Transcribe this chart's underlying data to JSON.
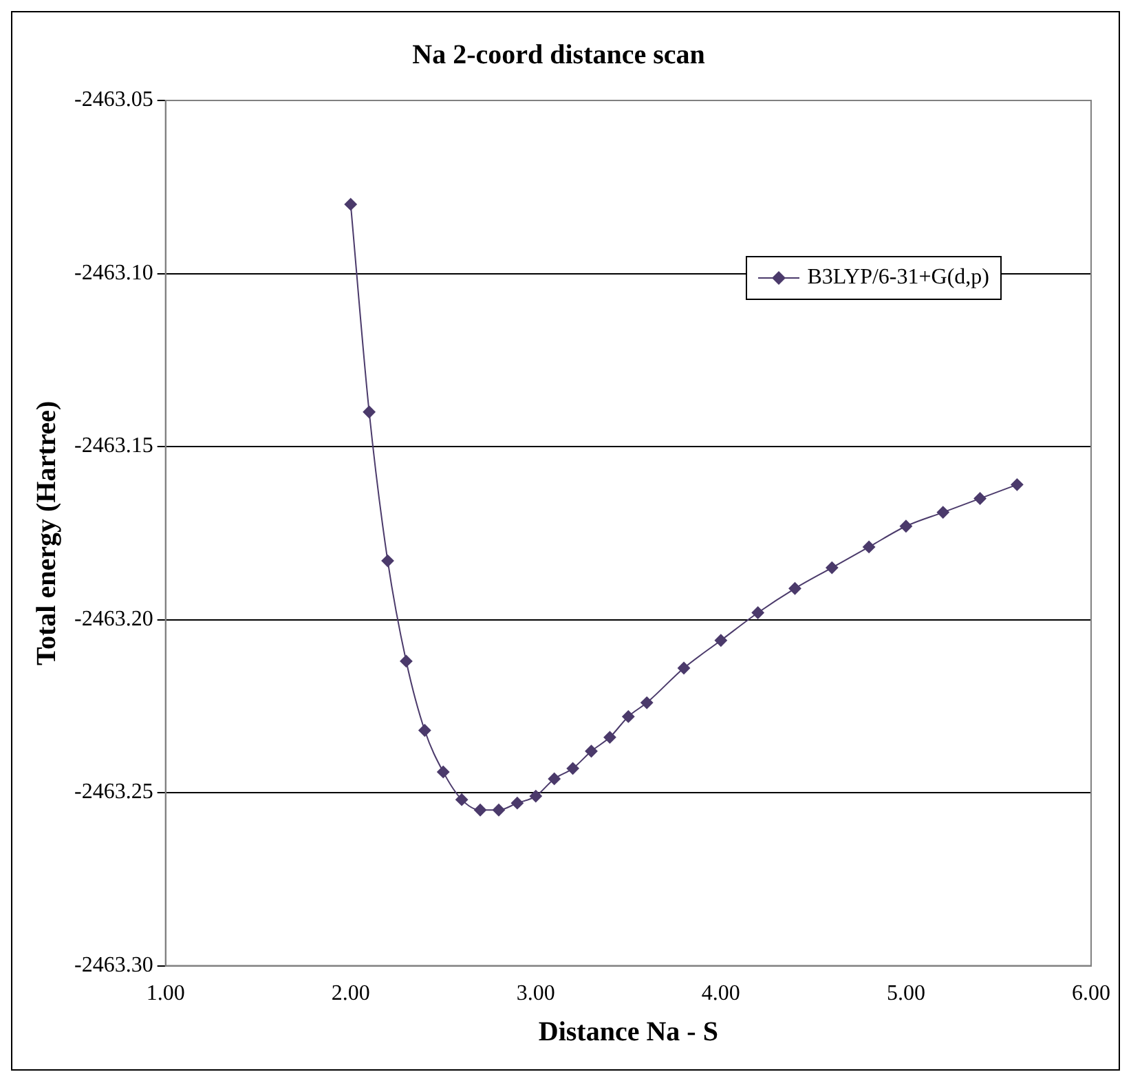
{
  "chart_data": {
    "type": "line",
    "title": "Na 2-coord distance scan",
    "xlabel": "Distance Na - S",
    "ylabel": "Total energy (Hartree)",
    "xlim": [
      1,
      6
    ],
    "xticks": [
      {
        "value": 1,
        "label": "1.00"
      },
      {
        "value": 2,
        "label": "2.00"
      },
      {
        "value": 3,
        "label": "3.00"
      },
      {
        "value": 4,
        "label": "4.00"
      },
      {
        "value": 5,
        "label": "5.00"
      },
      {
        "value": 6,
        "label": "6.00"
      }
    ],
    "ylim": [
      -2463.3,
      -2463.05
    ],
    "yticks": [
      {
        "value": -2463.3,
        "label": "-2463.30"
      },
      -2463.25,
      {
        "value": -2463.2,
        "label": "-2463.20"
      },
      -2463.15,
      {
        "value": -2463.1,
        "label": "-2463.10"
      },
      -2463.05
    ],
    "grid": "y",
    "legend": "top right",
    "marker": "diamond",
    "line_style": "solid",
    "series": [
      {
        "name": "B3LYP/6-31+G(d,p)",
        "color": "#4b3a6b",
        "x": [
          2.0,
          2.1,
          2.2,
          2.3,
          2.4,
          2.5,
          2.6,
          2.7,
          2.8,
          2.9,
          3.0,
          3.1,
          3.2,
          3.3,
          3.4,
          3.5,
          3.6,
          3.8,
          4.0,
          4.2,
          4.4,
          4.6,
          4.8,
          5.0,
          5.2,
          5.4,
          5.6
        ],
        "values": [
          -2463.08,
          -2463.14,
          -2463.183,
          -2463.212,
          -2463.232,
          -2463.244,
          -2463.252,
          -2463.255,
          -2463.255,
          -2463.253,
          -2463.251,
          -2463.246,
          -2463.243,
          -2463.238,
          -2463.234,
          -2463.228,
          -2463.224,
          -2463.214,
          -2463.206,
          -2463.198,
          -2463.191,
          -2463.185,
          -2463.179,
          -2463.173,
          -2463.169,
          -2463.165,
          -2463.161
        ]
      }
    ]
  }
}
